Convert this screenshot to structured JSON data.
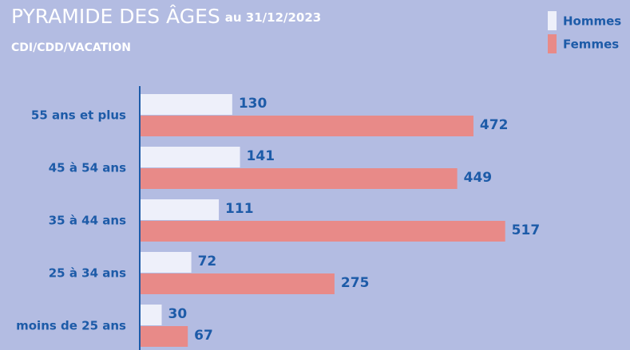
{
  "chart_data": {
    "type": "bar",
    "orientation": "horizontal",
    "title": "PYRAMIDE DES ÂGES",
    "title_suffix": "au 31/12/2023",
    "subtitle": "CDI/CDD/VACATION",
    "categories": [
      "55 ans et plus",
      "45 à 54 ans",
      "35 à 44 ans",
      "25 à 34 ans",
      "moins de 25 ans"
    ],
    "series": [
      {
        "name": "Hommes",
        "color": "#eef0fa",
        "values": [
          130,
          141,
          111,
          72,
          30
        ]
      },
      {
        "name": "Femmes",
        "color": "#e88a88",
        "values": [
          472,
          449,
          517,
          275,
          67
        ]
      }
    ],
    "xlim": [
      0,
      600
    ],
    "legend": "top-right"
  }
}
